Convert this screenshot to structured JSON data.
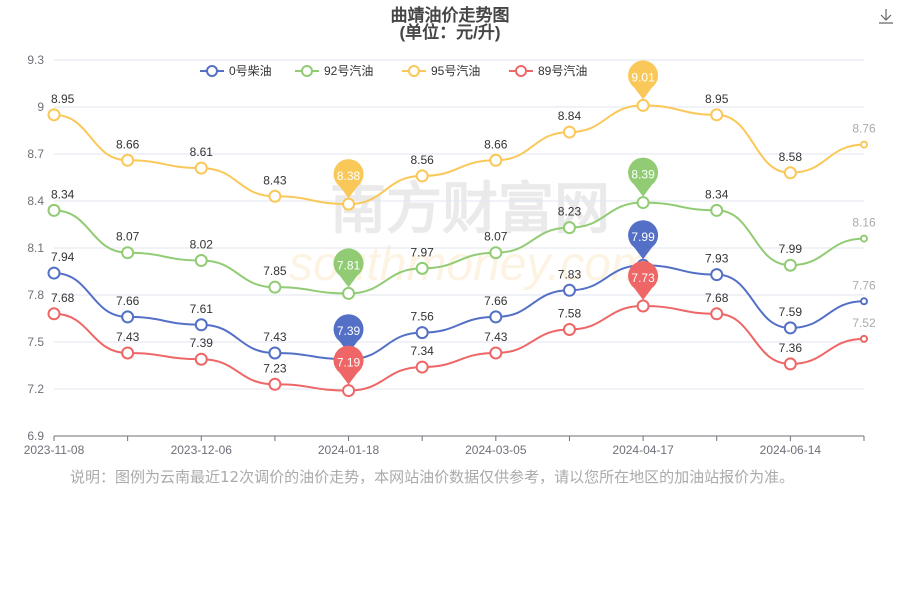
{
  "chart_data": {
    "type": "line",
    "title": "曲靖油价走势图",
    "subtitle": "(单位：元/升)",
    "x": [
      "2023-11-08",
      "",
      "2023-12-06",
      "",
      "2024-01-18",
      "",
      "2024-03-05",
      "",
      "2024-04-17",
      "",
      "2024-06-14",
      ""
    ],
    "xtick_labels": [
      "2023-11-08",
      "2023-12-06",
      "2024-01-18",
      "2024-03-05",
      "2024-04-17",
      "2024-06-14"
    ],
    "ylim": [
      6.9,
      9.3
    ],
    "yticks": [
      "6.9",
      "7.2",
      "7.5",
      "7.8",
      "8.1",
      "8.4",
      "8.7",
      "9",
      "9.3"
    ],
    "grid": true,
    "legend_position": "top-center",
    "series": [
      {
        "name": "0号柴油",
        "color": "#5470c6",
        "values": [
          7.94,
          7.66,
          7.61,
          7.43,
          7.39,
          7.56,
          7.66,
          7.83,
          7.99,
          7.93,
          7.59,
          7.76
        ]
      },
      {
        "name": "92号汽油",
        "color": "#91cc75",
        "values": [
          8.34,
          8.07,
          8.02,
          7.85,
          7.81,
          7.97,
          8.07,
          8.23,
          8.39,
          8.34,
          7.99,
          8.16
        ]
      },
      {
        "name": "95号汽油",
        "color": "#fac858",
        "values": [
          8.95,
          8.66,
          8.61,
          8.43,
          8.38,
          8.56,
          8.66,
          8.84,
          9.01,
          8.95,
          8.58,
          8.76
        ]
      },
      {
        "name": "89号汽油",
        "color": "#ee6666",
        "values": [
          7.68,
          7.43,
          7.39,
          7.23,
          7.19,
          7.34,
          7.43,
          7.58,
          7.73,
          7.68,
          7.36,
          7.52
        ]
      }
    ]
  },
  "watermark": "南方财富网 southmoney.com",
  "note": "说明：图例为云南最近12次调价的油价走势，本网站油价数据仅供参考，请以您所在地区的加油站报价为准。",
  "download_icon": "download-icon"
}
